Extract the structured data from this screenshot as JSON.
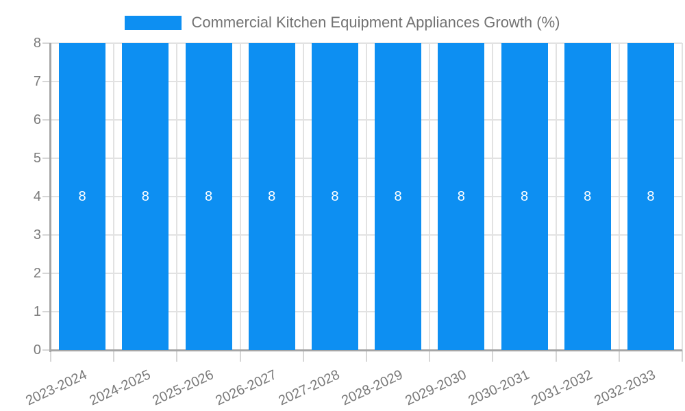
{
  "chart_data": {
    "type": "bar",
    "title": "Commercial Kitchen Equipment Appliances Growth (%)",
    "legend": {
      "position": "top-center",
      "label": "Commercial Kitchen Equipment Appliances Growth (%)"
    },
    "categories": [
      "2023-2024",
      "2024-2025",
      "2025-2026",
      "2026-2027",
      "2027-2028",
      "2028-2029",
      "2029-2030",
      "2030-2031",
      "2031-2032",
      "2032-2033"
    ],
    "values": [
      8,
      8,
      8,
      8,
      8,
      8,
      8,
      8,
      8,
      8
    ],
    "bar_value_labels": [
      "8",
      "8",
      "8",
      "8",
      "8",
      "8",
      "8",
      "8",
      "8",
      "8"
    ],
    "xlabel": "",
    "ylabel": "",
    "ylim": [
      0,
      8
    ],
    "yticks": [
      0,
      1,
      2,
      3,
      4,
      5,
      6,
      7,
      8
    ],
    "grid": true,
    "x_tick_rotation_deg": -25,
    "colors": {
      "bar": "#0D8FF2",
      "bar_label": "#FFFFFF",
      "title": "#737373",
      "tick_label": "#7A7A7A",
      "grid": "#E2E2E2",
      "tick": "#D6D6D6",
      "axis": "#A6A6A6",
      "background": "#FFFFFF"
    }
  }
}
